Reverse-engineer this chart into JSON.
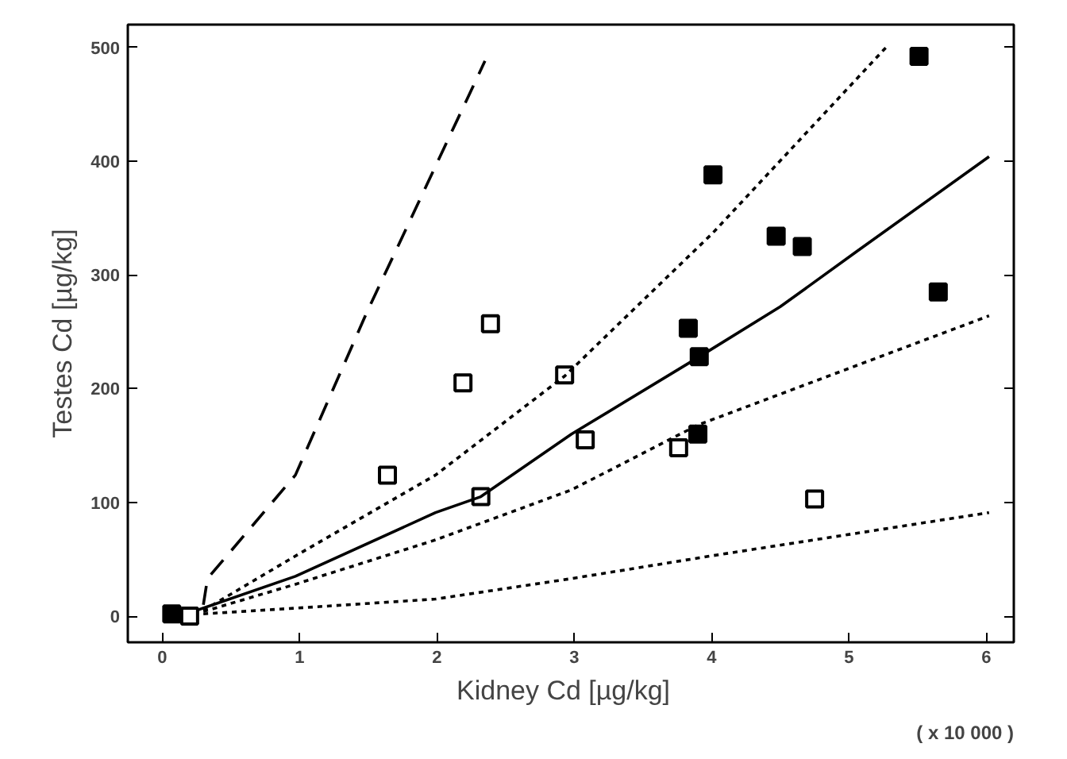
{
  "chart_data": {
    "type": "scatter",
    "xlabel": "Kidney Cd   [µg/kg]",
    "ylabel": "Testes Cd [µg/kg]",
    "xlim": [
      -0.25,
      6.2
    ],
    "ylim": [
      -23,
      520
    ],
    "xticks": [
      0,
      1,
      2,
      3,
      4,
      5,
      6
    ],
    "yticks": [
      0,
      100,
      200,
      300,
      400,
      500
    ],
    "grid": false,
    "marker": "square",
    "annotations": [
      "( x 10 000 )"
    ],
    "series": [
      {
        "color": "#ffffff",
        "x": [
          0.2,
          1.64,
          2.19,
          2.39,
          2.32,
          2.93,
          3.08,
          3.76,
          4.75
        ],
        "values": [
          0,
          124,
          205,
          257,
          105,
          212,
          155,
          148,
          103
        ]
      },
      {
        "color": "#000000",
        "x": [
          0.07,
          3.83,
          3.91,
          3.9,
          4.01,
          4.47,
          4.66,
          5.51,
          5.65
        ],
        "values": [
          2,
          253,
          228,
          160,
          388,
          334,
          325,
          492,
          285
        ]
      },
      {
        "type": "line",
        "color": "#000000",
        "line_style": "solid",
        "marker": "none",
        "x": [
          0.25,
          0.97,
          1.99,
          2.32,
          2.98,
          3.91,
          4.5,
          5.05,
          6.02
        ],
        "values": [
          5,
          35,
          91,
          105,
          160,
          228,
          272,
          320,
          404
        ]
      },
      {
        "type": "line",
        "color": "#000000",
        "line_style": "dotted",
        "marker": "none",
        "x": [
          0.3,
          1.0,
          1.99,
          2.93,
          4.01,
          5.27
        ],
        "values": [
          5,
          55,
          124,
          211,
          337,
          500
        ]
      },
      {
        "type": "line",
        "color": "#000000",
        "line_style": "dotted",
        "marker": "none",
        "x": [
          0.3,
          0.97,
          1.99,
          2.98,
          3.9,
          6.02
        ],
        "values": [
          4,
          28,
          67,
          111,
          168,
          264
        ]
      },
      {
        "type": "line",
        "color": "#000000",
        "line_style": "dotted",
        "marker": "none",
        "x": [
          0.3,
          0.97,
          1.99,
          2.98,
          4.0,
          6.02
        ],
        "values": [
          2,
          7,
          15,
          33,
          53,
          91
        ]
      },
      {
        "type": "line",
        "color": "#000000",
        "line_style": "dashed",
        "marker": "none",
        "x": [
          0.3,
          0.33,
          0.97,
          1.49,
          2.35
        ],
        "values": [
          10,
          33,
          124,
          267,
          488
        ]
      }
    ]
  }
}
